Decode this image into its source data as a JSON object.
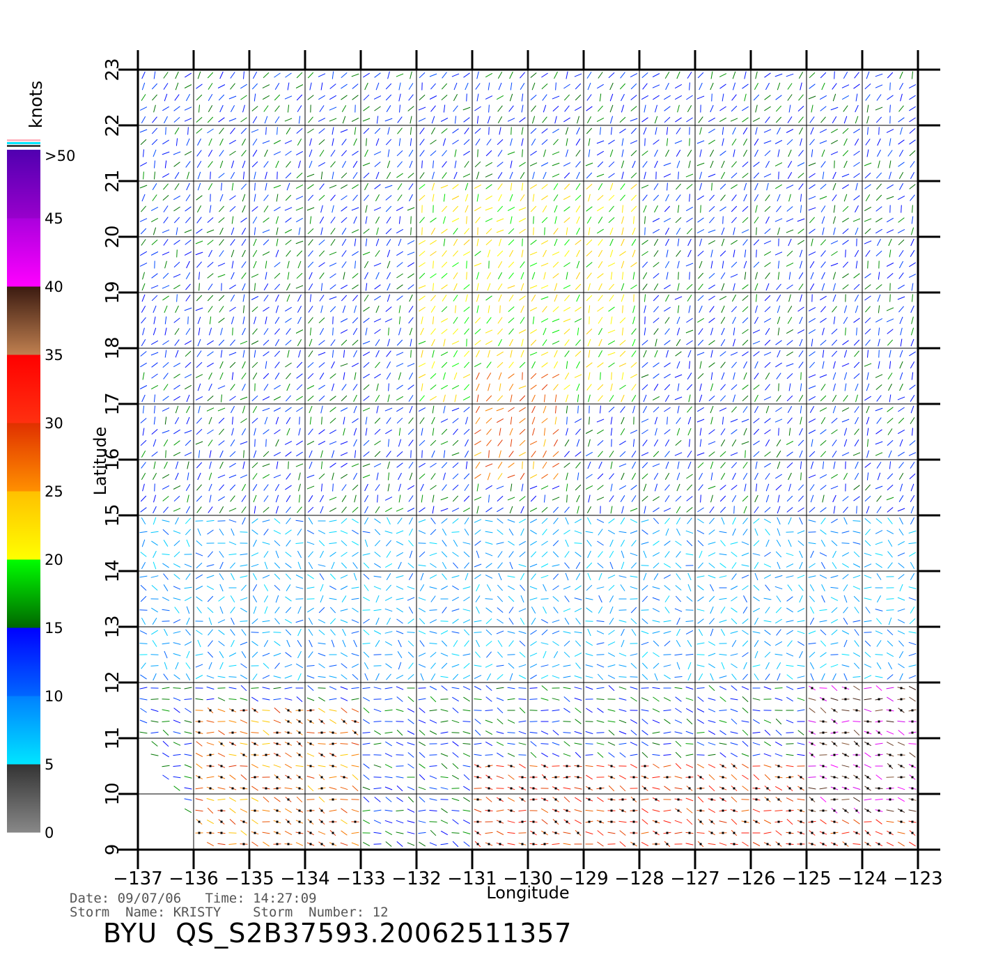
{
  "chart_data": {
    "type": "wind-vector-map",
    "xlabel": "Longitude",
    "ylabel": "Latitude",
    "xlim": [
      -137,
      -123
    ],
    "ylim": [
      9,
      23
    ],
    "x_ticks": [
      "-137",
      "-136",
      "-135",
      "-134",
      "-133",
      "-132",
      "-131",
      "-130",
      "-129",
      "-128",
      "-127",
      "-126",
      "-125",
      "-124",
      "-123"
    ],
    "y_ticks": [
      "9",
      "10",
      "11",
      "12",
      "13",
      "14",
      "15",
      "16",
      "17",
      "18",
      "19",
      "20",
      "21",
      "22",
      "23"
    ],
    "grid": true,
    "colorbar": {
      "unit": "knots",
      "labels": [
        ">50",
        "45",
        "40",
        "35",
        "30",
        "25",
        "20",
        "15",
        "10",
        "5",
        "0"
      ],
      "bands": [
        {
          "from": 0,
          "to": 5,
          "top": "#333333",
          "bottom": "#888888"
        },
        {
          "from": 5,
          "to": 10,
          "top": "#0080ff",
          "bottom": "#00e5ff"
        },
        {
          "from": 10,
          "to": 15,
          "top": "#0000ff",
          "bottom": "#0066ff"
        },
        {
          "from": 15,
          "to": 20,
          "top": "#00ff00",
          "bottom": "#006600"
        },
        {
          "from": 20,
          "to": 25,
          "top": "#ffc000",
          "bottom": "#ffff00"
        },
        {
          "from": 25,
          "to": 30,
          "top": "#e03000",
          "bottom": "#ff9000"
        },
        {
          "from": 30,
          "to": 35,
          "top": "#ff0000",
          "bottom": "#ff3010"
        },
        {
          "from": 35,
          "to": 40,
          "top": "#3a1a10",
          "bottom": "#c08050"
        },
        {
          "from": 40,
          "to": 45,
          "top": "#aa00dd",
          "bottom": "#ff00ff"
        },
        {
          "from": 45,
          "to": 50,
          "top": "#5000b0",
          "bottom": "#9900cc"
        }
      ],
      "cap_stripes": [
        "#ffb6c1",
        "#00e5ff",
        "#404040"
      ]
    },
    "speed_regions": [
      {
        "name": "trade-winds-north",
        "lon": [
          -137,
          -123
        ],
        "lat": [
          17,
          23
        ],
        "speed_knots": 14
      },
      {
        "name": "yellow-core",
        "lon": [
          -132,
          -128
        ],
        "lat": [
          17,
          21
        ],
        "speed_knots": 21
      },
      {
        "name": "red-core",
        "lon": [
          -131,
          -129.5
        ],
        "lat": [
          15.5,
          17.5
        ],
        "speed_knots": 27
      },
      {
        "name": "calm-center",
        "lon": [
          -130,
          -126
        ],
        "lat": [
          12,
          15
        ],
        "speed_knots": 3
      },
      {
        "name": "light-band",
        "lon": [
          -137,
          -123
        ],
        "lat": [
          12,
          15
        ],
        "speed_knots": 8
      },
      {
        "name": "southwest-jet",
        "lon": [
          -136,
          -133
        ],
        "lat": [
          9,
          11.5
        ],
        "speed_knots": 27
      },
      {
        "name": "south-jet",
        "lon": [
          -131,
          -123
        ],
        "lat": [
          9,
          10.5
        ],
        "speed_knots": 30
      },
      {
        "name": "southeast-max",
        "lon": [
          -125,
          -123
        ],
        "lat": [
          9.5,
          12
        ],
        "speed_knots": 40
      }
    ]
  },
  "meta": {
    "date_line": "Date: 09/07/06   Time: 14:27:09",
    "storm_line": "Storm  Name: KRISTY    Storm  Number: 12",
    "product_title": "BYU  QS_S2B37593.20062511357"
  }
}
